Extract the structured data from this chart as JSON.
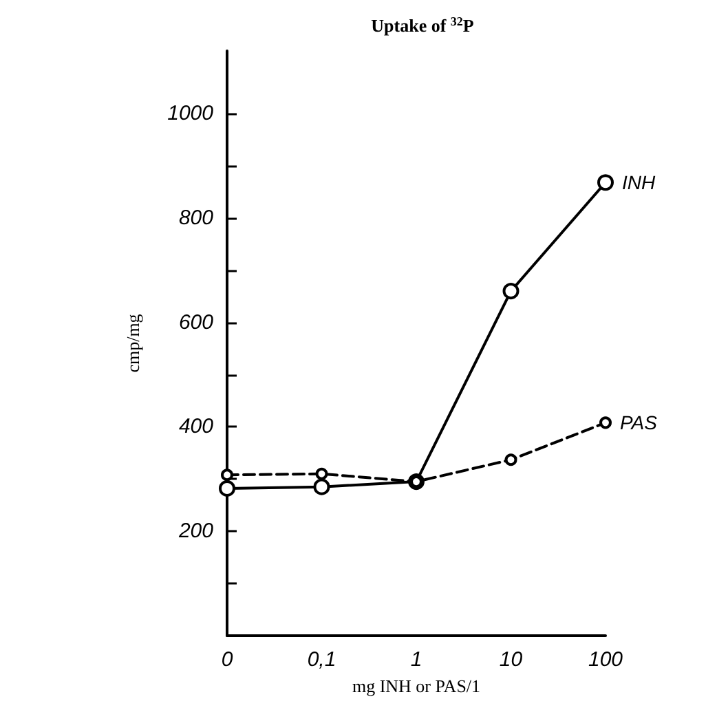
{
  "chart_data": {
    "type": "line",
    "title": "Uptake of $^{32}$P",
    "xlabel": "mg INH or PAS/1",
    "ylabel": "cmp/mg",
    "categories": [
      "0",
      "0,1",
      "1",
      "10",
      "100"
    ],
    "series": [
      {
        "name": "INH",
        "color": "#000000",
        "line_style": "solid",
        "values": [
          282,
          285,
          295,
          660,
          868
        ]
      },
      {
        "name": "PAS",
        "color": "#000000",
        "line_style": "dashed",
        "values": [
          308,
          310,
          295,
          337,
          408
        ]
      }
    ],
    "ylim": [
      0,
      1120
    ],
    "yticks": [
      {
        "value": 100,
        "label": null
      },
      200,
      {
        "value": 300,
        "label": null
      },
      400,
      {
        "value": 500,
        "label": null
      },
      600,
      {
        "value": 700,
        "label": null
      },
      800,
      {
        "value": 900,
        "label": null
      },
      1000
    ],
    "marker": "circle",
    "grid": false,
    "legend": false
  }
}
